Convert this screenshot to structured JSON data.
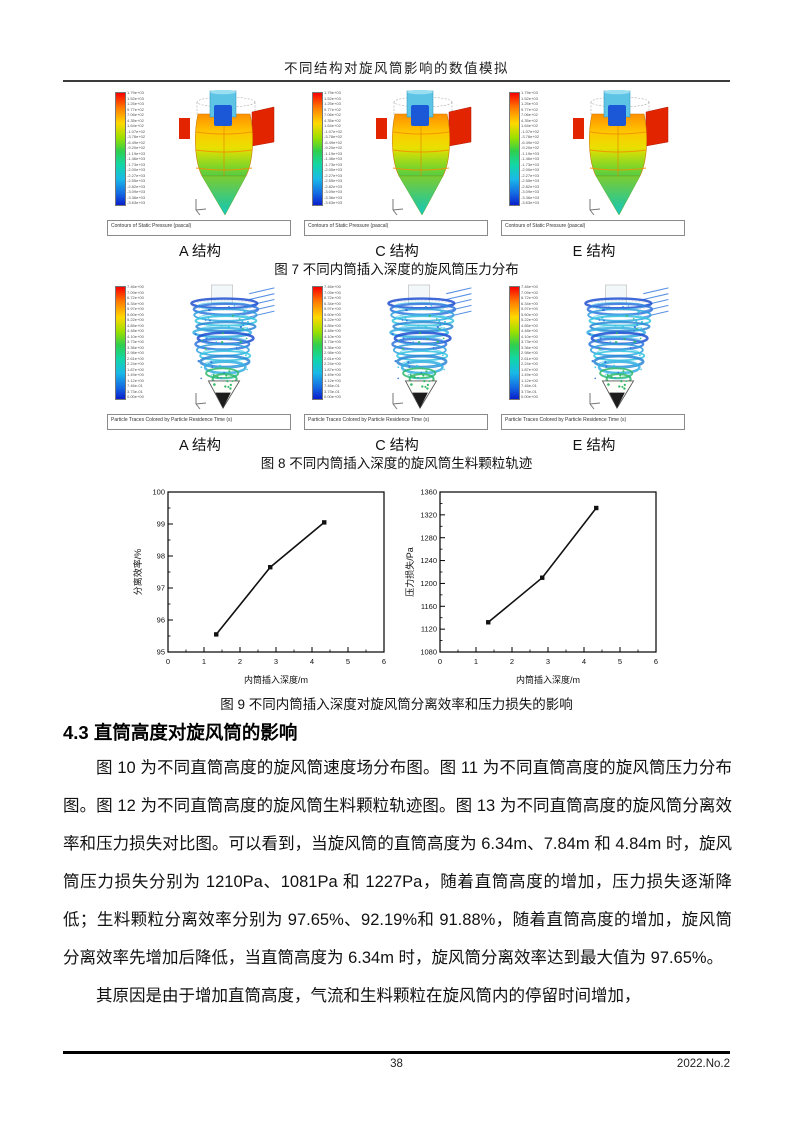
{
  "header": {
    "title": "不同结构对旋风筒影响的数值模拟"
  },
  "figure7": {
    "panel_caption": "Contours of Static Pressure (pascal)",
    "panels": [
      {
        "label": "A 结构"
      },
      {
        "label": "C 结构"
      },
      {
        "label": "E 结构"
      }
    ],
    "caption": "图 7 不同内筒插入深度的旋风筒压力分布",
    "legend_values": [
      "1.79e+03",
      "1.52e+03",
      "1.25e+03",
      "9.77e+02",
      "7.06e+02",
      "4.35e+02",
      "1.64e+02",
      "-1.07e+02",
      "-3.78e+02",
      "-6.49e+02",
      "-9.20e+02",
      "-1.19e+03",
      "-1.46e+03",
      "-1.73e+03",
      "-2.00e+03",
      "-2.27e+03",
      "-2.55e+03",
      "-2.82e+03",
      "-3.09e+03",
      "-3.36e+03",
      "-3.63e+03"
    ]
  },
  "figure8": {
    "panel_caption": "Particle Traces Colored by Particle Residence Time (s)",
    "panels": [
      {
        "label": "A 结构"
      },
      {
        "label": "C 结构"
      },
      {
        "label": "E 结构"
      }
    ],
    "caption": "图 8 不同内筒插入深度的旋风筒生料颗粒轨迹",
    "legend_values": [
      "7.46e+00",
      "7.09e+00",
      "6.72e+00",
      "6.34e+00",
      "5.97e+00",
      "5.60e+00",
      "5.22e+00",
      "4.85e+00",
      "4.48e+00",
      "4.10e+00",
      "3.73e+00",
      "3.36e+00",
      "2.98e+00",
      "2.61e+00",
      "2.24e+00",
      "1.87e+00",
      "1.49e+00",
      "1.12e+00",
      "7.46e-01",
      "3.73e-01",
      "0.00e+00"
    ]
  },
  "figure9": {
    "caption": "图 9 不同内筒插入深度对旋风筒分离效率和压力损失的影响"
  },
  "chart_data": [
    {
      "type": "line",
      "x": [
        1.34,
        2.84,
        4.34
      ],
      "y": [
        95.55,
        97.65,
        99.05
      ],
      "xlabel": "内筒插入深度/m",
      "ylabel": "分离效率/%",
      "xlim": [
        0,
        6
      ],
      "ylim": [
        95,
        100
      ],
      "xticks": [
        0,
        1,
        2,
        3,
        4,
        5,
        6
      ],
      "yticks": [
        95,
        96,
        97,
        98,
        99,
        100
      ],
      "marker": "square",
      "line_color": "#111111",
      "grid": false,
      "legend": "none"
    },
    {
      "type": "line",
      "x": [
        1.34,
        2.84,
        4.34
      ],
      "y": [
        1132,
        1210,
        1332
      ],
      "xlabel": "内筒插入深度/m",
      "ylabel": "压力损失/Pa",
      "xlim": [
        0,
        6
      ],
      "ylim": [
        1080,
        1360
      ],
      "xticks": [
        0,
        1,
        2,
        3,
        4,
        5,
        6
      ],
      "yticks": [
        1080,
        1120,
        1160,
        1200,
        1240,
        1280,
        1320,
        1360
      ],
      "marker": "square",
      "line_color": "#111111",
      "grid": false,
      "legend": "none"
    }
  ],
  "section": {
    "heading": "4.3 直筒高度对旋风筒的影响"
  },
  "paragraphs": {
    "p1": "图 10 为不同直筒高度的旋风筒速度场分布图。图 11 为不同直筒高度的旋风筒压力分布图。图 12 为不同直筒高度的旋风筒生料颗粒轨迹图。图 13 为不同直筒高度的旋风筒分离效率和压力损失对比图。可以看到，当旋风筒的直筒高度为 6.34m、7.84m 和 4.84m 时，旋风筒压力损失分别为 1210Pa、1081Pa 和 1227Pa，随着直筒高度的增加，压力损失逐渐降低；生料颗粒分离效率分别为 97.65%、92.19%和 91.88%，随着直筒高度的增加，旋风筒分离效率先增加后降低，当直筒高度为 6.34m 时，旋风筒分离效率达到最大值为 97.65%。",
    "p2": "其原因是由于增加直筒高度，气流和生料颗粒在旋风筒内的停留时间增加，"
  },
  "footer": {
    "page_number": "38",
    "issue": "2022.No.2"
  },
  "colors": {
    "contour_max": "#f80000",
    "contour_min": "#0a1ecb",
    "inlet_red": "#e32400",
    "trace_blue": "#2f76dd",
    "trace_cyan": "#32c3e0",
    "trace_green": "#2fb868",
    "chart_line": "#111111"
  }
}
